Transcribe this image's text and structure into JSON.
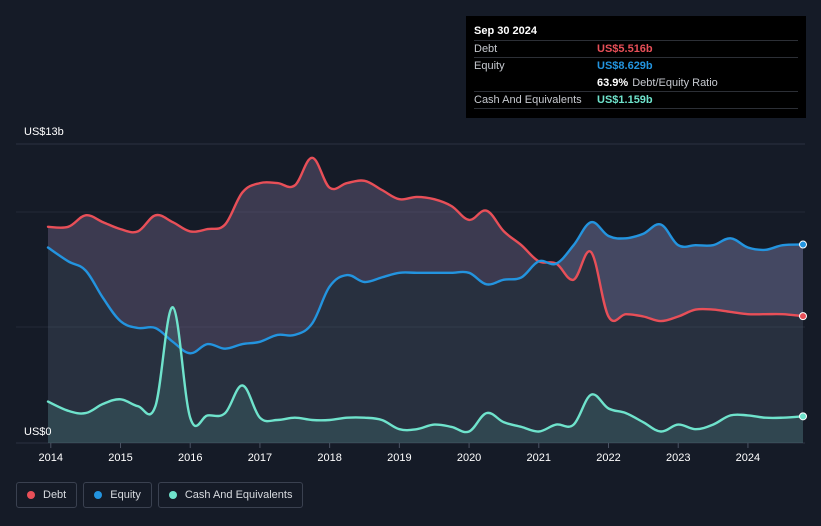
{
  "tooltip": {
    "date": "Sep 30 2024",
    "debt_label": "Debt",
    "debt_value": "US$5.516b",
    "equity_label": "Equity",
    "equity_value": "US$8.629b",
    "ratio_value": "63.9%",
    "ratio_label": "Debt/Equity Ratio",
    "cash_label": "Cash And Equivalents",
    "cash_value": "US$1.159b"
  },
  "legend": {
    "debt": "Debt",
    "equity": "Equity",
    "cash": "Cash And Equivalents"
  },
  "colors": {
    "debt": "#e84f58",
    "equity": "#2394df",
    "cash": "#6fe3cc",
    "background": "#151b27"
  },
  "chart_data": {
    "type": "area",
    "title": "",
    "xlabel": "",
    "ylabel": "",
    "ylim": [
      0,
      13
    ],
    "y_unit": "US$ billions",
    "y_top_label": "US$13b",
    "y_bottom_label": "US$0",
    "x_ticks": [
      "2014",
      "2015",
      "2016",
      "2017",
      "2018",
      "2019",
      "2020",
      "2021",
      "2022",
      "2023",
      "2024"
    ],
    "x_tick_values": [
      2014,
      2015,
      2016,
      2017,
      2018,
      2019,
      2020,
      2021,
      2022,
      2023,
      2024
    ],
    "xlim": [
      2013.96,
      2024.79
    ],
    "series": [
      {
        "name": "Debt",
        "x": [
          2013.96,
          2014.25,
          2014.5,
          2014.75,
          2015.0,
          2015.25,
          2015.5,
          2015.75,
          2016.0,
          2016.25,
          2016.5,
          2016.75,
          2017.0,
          2017.25,
          2017.5,
          2017.75,
          2018.0,
          2018.25,
          2018.5,
          2018.75,
          2019.0,
          2019.25,
          2019.5,
          2019.75,
          2020.0,
          2020.25,
          2020.5,
          2020.75,
          2021.0,
          2021.25,
          2021.5,
          2021.75,
          2022.0,
          2022.25,
          2022.5,
          2022.75,
          2023.0,
          2023.25,
          2023.5,
          2023.75,
          2024.0,
          2024.25,
          2024.5,
          2024.79
        ],
        "values": [
          9.4,
          9.4,
          9.9,
          9.6,
          9.3,
          9.2,
          9.9,
          9.6,
          9.2,
          9.3,
          9.5,
          10.9,
          11.3,
          11.3,
          11.2,
          12.4,
          11.1,
          11.3,
          11.4,
          11.0,
          10.6,
          10.7,
          10.6,
          10.3,
          9.7,
          10.1,
          9.2,
          8.6,
          7.9,
          7.8,
          7.1,
          8.3,
          5.5,
          5.6,
          5.5,
          5.3,
          5.5,
          5.8,
          5.8,
          5.7,
          5.6,
          5.6,
          5.6,
          5.516
        ]
      },
      {
        "name": "Equity",
        "x": [
          2013.96,
          2014.25,
          2014.5,
          2014.75,
          2015.0,
          2015.25,
          2015.5,
          2015.75,
          2016.0,
          2016.25,
          2016.5,
          2016.75,
          2017.0,
          2017.25,
          2017.5,
          2017.75,
          2018.0,
          2018.25,
          2018.5,
          2018.75,
          2019.0,
          2019.25,
          2019.5,
          2019.75,
          2020.0,
          2020.25,
          2020.5,
          2020.75,
          2021.0,
          2021.25,
          2021.5,
          2021.75,
          2022.0,
          2022.25,
          2022.5,
          2022.75,
          2023.0,
          2023.25,
          2023.5,
          2023.75,
          2024.0,
          2024.25,
          2024.5,
          2024.79
        ],
        "values": [
          8.5,
          7.9,
          7.5,
          6.3,
          5.3,
          5.0,
          5.0,
          4.4,
          3.9,
          4.3,
          4.1,
          4.3,
          4.4,
          4.7,
          4.7,
          5.2,
          6.8,
          7.3,
          7.0,
          7.2,
          7.4,
          7.4,
          7.4,
          7.4,
          7.4,
          6.9,
          7.1,
          7.2,
          7.9,
          7.8,
          8.6,
          9.6,
          9.0,
          8.9,
          9.1,
          9.5,
          8.6,
          8.6,
          8.6,
          8.9,
          8.5,
          8.4,
          8.6,
          8.629
        ]
      },
      {
        "name": "Cash And Equivalents",
        "x": [
          2013.96,
          2014.25,
          2014.5,
          2014.75,
          2015.0,
          2015.25,
          2015.5,
          2015.75,
          2016.0,
          2016.25,
          2016.5,
          2016.75,
          2017.0,
          2017.25,
          2017.5,
          2017.75,
          2018.0,
          2018.25,
          2018.5,
          2018.75,
          2019.0,
          2019.25,
          2019.5,
          2019.75,
          2020.0,
          2020.25,
          2020.5,
          2020.75,
          2021.0,
          2021.25,
          2021.5,
          2021.75,
          2022.0,
          2022.25,
          2022.5,
          2022.75,
          2023.0,
          2023.25,
          2023.5,
          2023.75,
          2024.0,
          2024.25,
          2024.5,
          2024.79
        ],
        "values": [
          1.8,
          1.4,
          1.3,
          1.7,
          1.9,
          1.6,
          1.6,
          5.9,
          1.1,
          1.2,
          1.3,
          2.5,
          1.1,
          1.0,
          1.1,
          1.0,
          1.0,
          1.1,
          1.1,
          1.0,
          0.6,
          0.6,
          0.8,
          0.7,
          0.5,
          1.3,
          0.9,
          0.7,
          0.5,
          0.8,
          0.8,
          2.1,
          1.5,
          1.3,
          0.9,
          0.5,
          0.8,
          0.6,
          0.8,
          1.2,
          1.2,
          1.1,
          1.1,
          1.159
        ]
      }
    ]
  }
}
